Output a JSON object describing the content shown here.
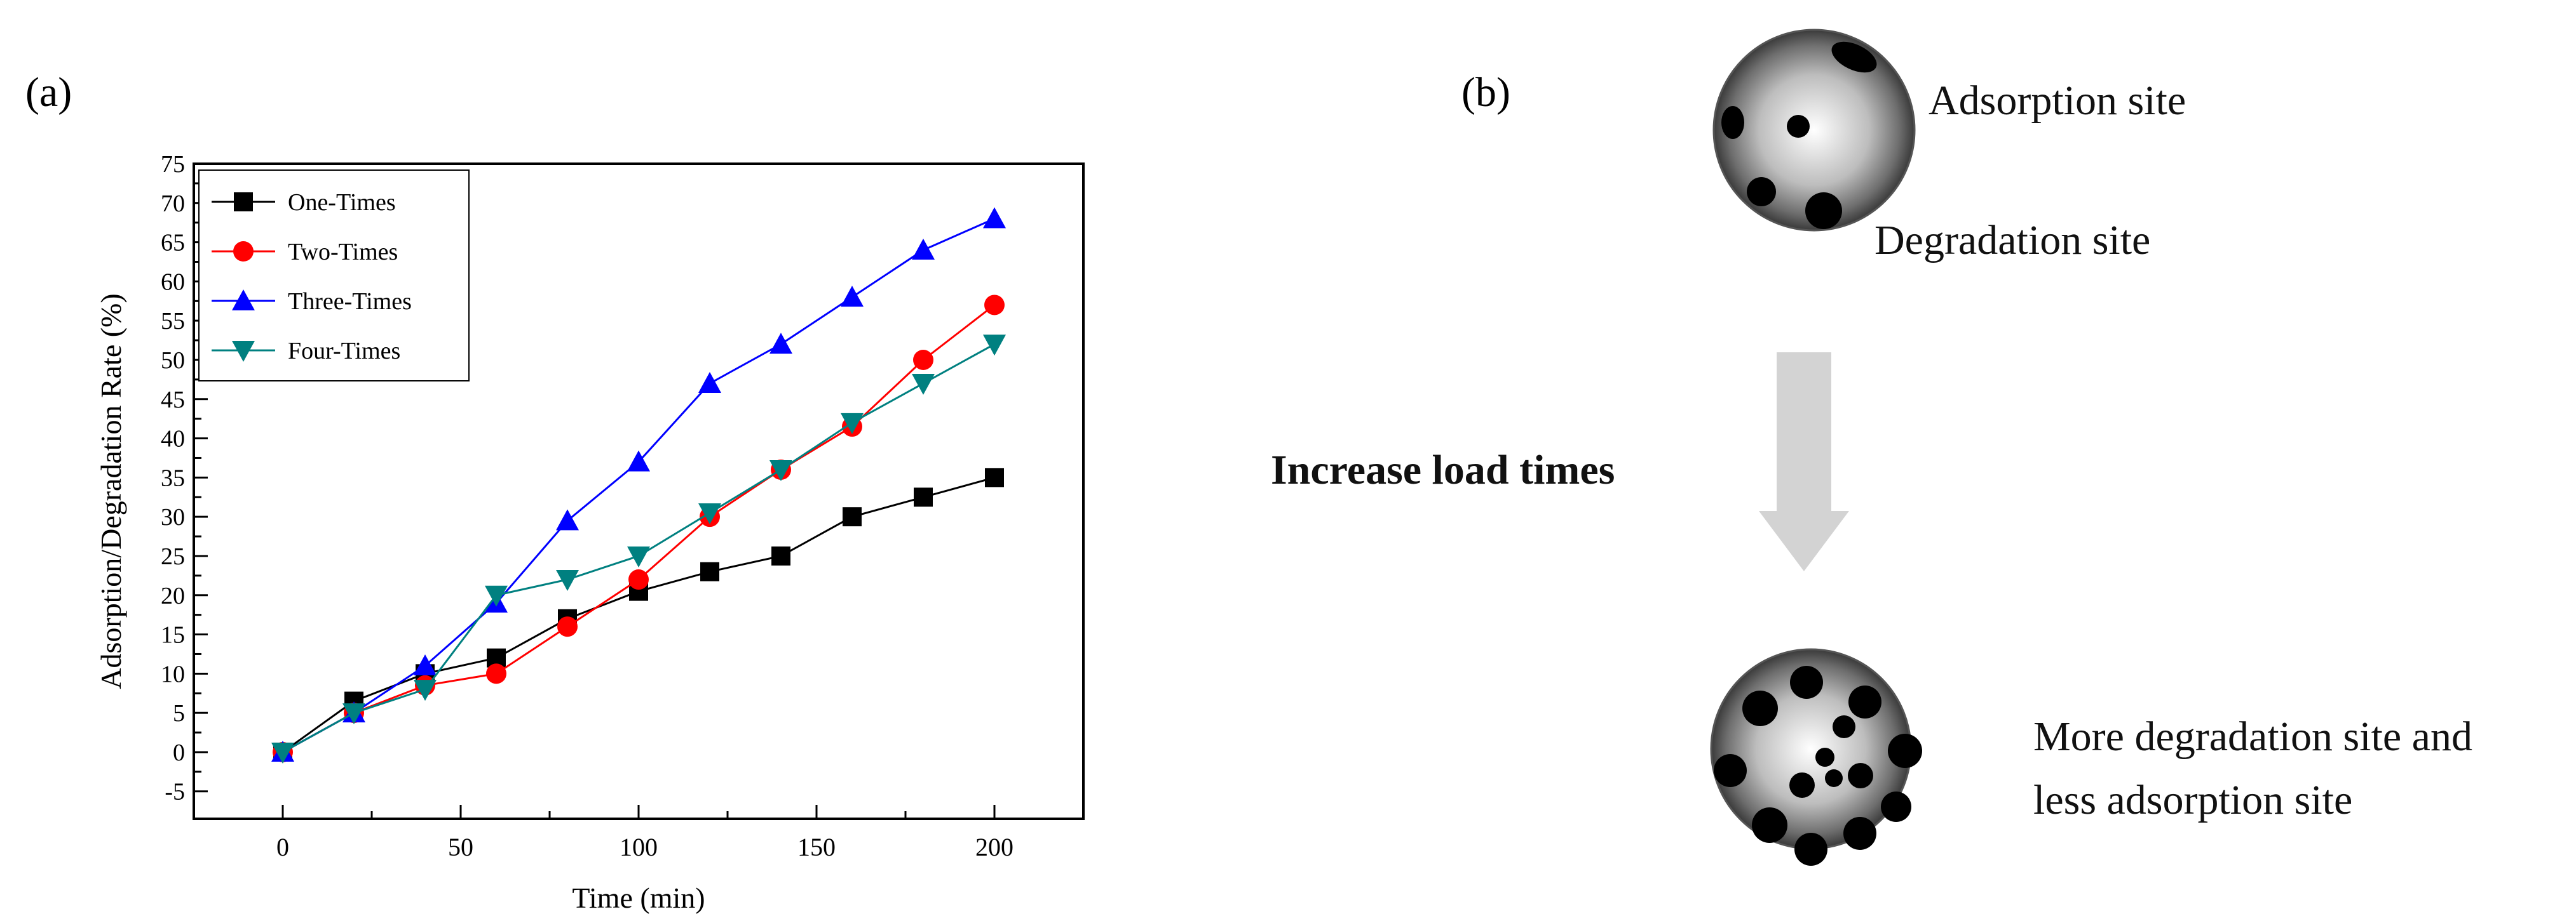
{
  "panels": {
    "a_label": "(a)",
    "b_label": "(b)"
  },
  "chart_data": {
    "type": "line",
    "xlabel": "Time (min)",
    "ylabel": "Adsorption/Degradation Rate (%)",
    "xlim": [
      -25,
      225
    ],
    "ylim": [
      -8.5,
      75
    ],
    "xticks": [
      0,
      50,
      100,
      150,
      200
    ],
    "yticks": [
      -5,
      0,
      5,
      10,
      15,
      20,
      25,
      30,
      35,
      40,
      45,
      50,
      55,
      60,
      65,
      70,
      75
    ],
    "legend_position": "top-left",
    "x": [
      0,
      20,
      40,
      60,
      80,
      100,
      120,
      140,
      160,
      180,
      200
    ],
    "series": [
      {
        "name": "One-Times",
        "color": "#000000",
        "marker": "square",
        "values": [
          0,
          6.5,
          10,
          12,
          17,
          20.5,
          23,
          25,
          30,
          32.5,
          35
        ]
      },
      {
        "name": "Two-Times",
        "color": "#ff0000",
        "marker": "circle",
        "values": [
          0,
          5,
          8.5,
          10,
          16,
          22,
          30,
          36,
          41.5,
          50,
          57
        ]
      },
      {
        "name": "Three-Times",
        "color": "#0000ff",
        "marker": "triangle-up",
        "values": [
          0,
          5,
          11,
          19,
          29.5,
          37,
          47,
          52,
          58,
          64,
          68
        ]
      },
      {
        "name": "Four-Times",
        "color": "#008080",
        "marker": "triangle-down",
        "values": [
          0,
          5,
          8,
          20,
          22,
          25,
          30.5,
          36,
          42,
          47,
          52
        ]
      }
    ]
  },
  "schematic": {
    "top_label_adsorption": "Adsorption site",
    "top_label_degradation": "Degradation site",
    "arrow_label": "Increase load times",
    "bottom_label_line1": "More degradation site and",
    "bottom_label_line2": "less adsorption site",
    "arrow_color": "#d3d3d3"
  }
}
